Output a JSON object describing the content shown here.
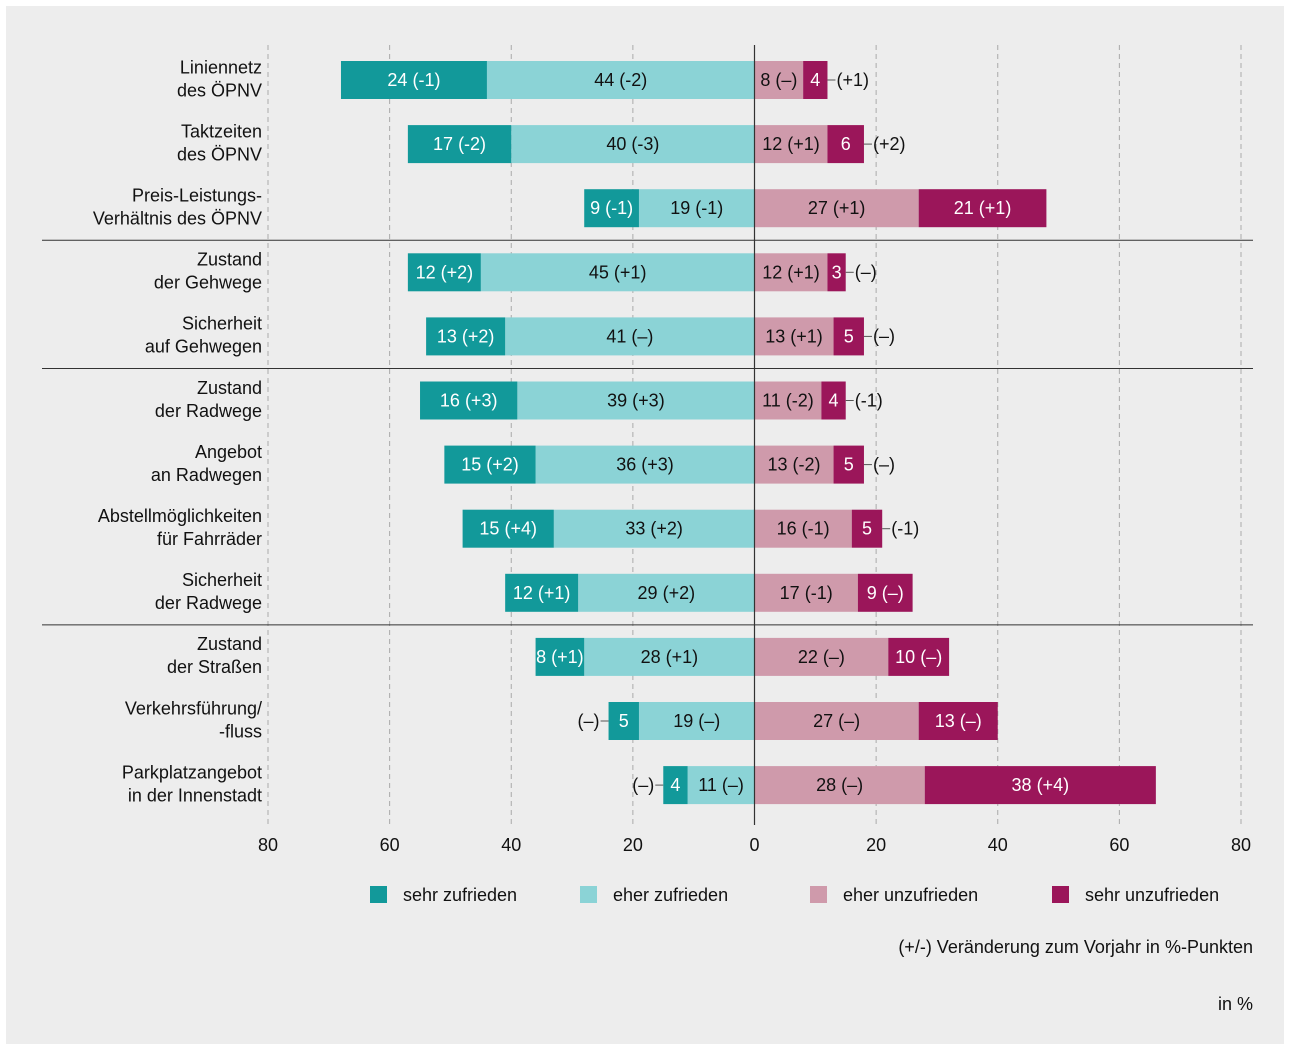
{
  "chart_data": {
    "type": "diverging_bar",
    "categories": [
      [
        "Liniennetz",
        "des ÖPNV"
      ],
      [
        "Taktzeiten",
        "des ÖPNV"
      ],
      [
        "Preis-Leistungs-",
        "Verhältnis des ÖPNV"
      ],
      [
        "Zustand",
        "der Gehwege"
      ],
      [
        "Sicherheit",
        "auf Gehwegen"
      ],
      [
        "Zustand",
        "der Radwege"
      ],
      [
        "Angebot",
        "an Radwegen"
      ],
      [
        "Abstellmöglichkeiten",
        "für Fahrräder"
      ],
      [
        "Sicherheit",
        "der Radwege"
      ],
      [
        "Zustand",
        "der Straßen"
      ],
      [
        "Verkehrsführung/",
        "-fluss"
      ],
      [
        "Parkplatzangebot",
        "in der Innenstadt"
      ]
    ],
    "series": [
      {
        "name": "sehr zufrieden",
        "color": "#12999a",
        "text_color": "#ffffff",
        "side": "left",
        "values": [
          24,
          17,
          9,
          12,
          13,
          16,
          15,
          15,
          12,
          8,
          5,
          4
        ],
        "changes": [
          "(-1)",
          "(-2)",
          "(-1)",
          "(+2)",
          "(+2)",
          "(+3)",
          "(+2)",
          "(+4)",
          "(+1)",
          "(+1)",
          "(–)",
          "(–)"
        ]
      },
      {
        "name": "eher zufrieden",
        "color": "#8bd3d6",
        "text_color": "#111111",
        "side": "left",
        "values": [
          44,
          40,
          19,
          45,
          41,
          39,
          36,
          33,
          29,
          28,
          19,
          11
        ],
        "changes": [
          "(-2)",
          "(-3)",
          "(-1)",
          "(+1)",
          "(–)",
          "(+3)",
          "(+3)",
          "(+2)",
          "(+2)",
          "(+1)",
          "(–)",
          "(–)"
        ]
      },
      {
        "name": "eher unzufrieden",
        "color": "#cf9aab",
        "text_color": "#111111",
        "side": "right",
        "values": [
          8,
          12,
          27,
          12,
          13,
          11,
          13,
          16,
          17,
          22,
          27,
          28
        ],
        "changes": [
          "(–)",
          "(+1)",
          "(+1)",
          "(+1)",
          "(+1)",
          "(-2)",
          "(-2)",
          "(-1)",
          "(-1)",
          "(–)",
          "(–)",
          "(–)"
        ]
      },
      {
        "name": "sehr unzufrieden",
        "color": "#9b165a",
        "text_color": "#ffffff",
        "side": "right",
        "values": [
          4,
          6,
          21,
          3,
          5,
          4,
          5,
          5,
          9,
          10,
          13,
          38
        ],
        "changes": [
          "(+1)",
          "(+2)",
          "(+1)",
          "(–)",
          "(–)",
          "(-1)",
          "(–)",
          "(-1)",
          "(–)",
          "(–)",
          "(–)",
          "(+4)"
        ]
      }
    ],
    "xlim": [
      -80,
      80
    ],
    "xticks": [
      {
        "value": -80,
        "label": "80"
      },
      {
        "value": -60,
        "label": "60"
      },
      {
        "value": -40,
        "label": "40"
      },
      {
        "value": -20,
        "label": "20"
      },
      0,
      20,
      40,
      60,
      80
    ],
    "grid": true,
    "note": "(+/-) Veränderung zum Vorjahr in %-Punkten",
    "unit": "in %"
  }
}
